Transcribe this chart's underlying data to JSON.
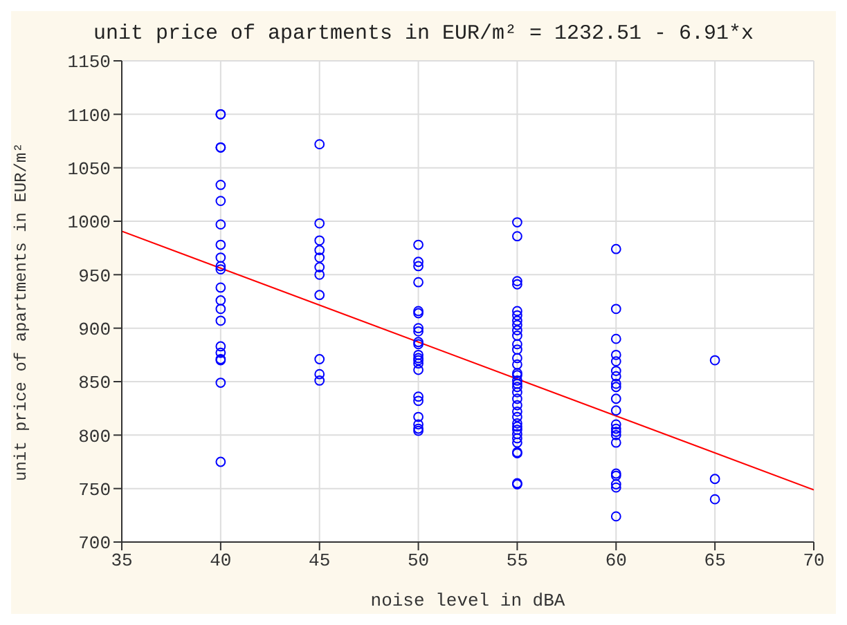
{
  "chart_data": {
    "type": "scatter",
    "title": "unit price of apartments in EUR/m² = 1232.51 - 6.91*x",
    "xlabel": "noise level in dBA",
    "ylabel": "unit price of apartments in EUR/m²",
    "series": [
      {
        "color": "#0000ff",
        "marker": "circle",
        "x": [
          40,
          40,
          40,
          40,
          40,
          40,
          40,
          40,
          40,
          40,
          40,
          40,
          40,
          40,
          40,
          40,
          40,
          40,
          40,
          40,
          40,
          45,
          45,
          45,
          45,
          45,
          45,
          45,
          45,
          45,
          45,
          45,
          50,
          50,
          50,
          50,
          50,
          50,
          50,
          50,
          50,
          50,
          50,
          50,
          50,
          50,
          50,
          50,
          50,
          50,
          50,
          50,
          50,
          55,
          55,
          55,
          55,
          55,
          55,
          55,
          55,
          55,
          55,
          55,
          55,
          55,
          55,
          55,
          55,
          55,
          55,
          55,
          55,
          55,
          55,
          55,
          55,
          55,
          55,
          55,
          55,
          55,
          55,
          55,
          55,
          55,
          55,
          60,
          60,
          60,
          60,
          60,
          60,
          60,
          60,
          60,
          60,
          60,
          60,
          60,
          60,
          60,
          60,
          60,
          60,
          60,
          60,
          60,
          65,
          65,
          65
        ],
        "values": [
          1100,
          1100,
          1069,
          1069,
          1034,
          1019,
          997,
          978,
          966,
          958,
          955,
          938,
          926,
          918,
          907,
          883,
          877,
          871,
          870,
          849,
          775,
          1072,
          998,
          982,
          973,
          966,
          957,
          950,
          931,
          871,
          857,
          851,
          978,
          962,
          958,
          943,
          916,
          914,
          900,
          897,
          887,
          885,
          875,
          872,
          870,
          867,
          861,
          836,
          832,
          817,
          810,
          806,
          804,
          999,
          986,
          944,
          941,
          916,
          912,
          907,
          903,
          898,
          893,
          885,
          880,
          872,
          866,
          858,
          856,
          851,
          848,
          845,
          840,
          834,
          828,
          822,
          817,
          811,
          808,
          805,
          801,
          797,
          793,
          784,
          783,
          755,
          754,
          974,
          918,
          890,
          875,
          869,
          860,
          855,
          848,
          845,
          834,
          823,
          810,
          806,
          803,
          800,
          793,
          764,
          762,
          754,
          751,
          724,
          870,
          759,
          740
        ]
      },
      {
        "type": "line",
        "color": "#ff0000",
        "marker": "none",
        "line_style": "solid",
        "x": [
          35,
          70
        ],
        "values": [
          990.7,
          748.8
        ]
      }
    ],
    "xlim": [
      35,
      70
    ],
    "xticks": [
      35,
      40,
      45,
      50,
      55,
      60,
      65,
      70
    ],
    "ylim": [
      700,
      1150
    ],
    "yticks": [
      700,
      750,
      800,
      850,
      900,
      950,
      1000,
      1050,
      1100,
      1150
    ],
    "grid": true
  }
}
